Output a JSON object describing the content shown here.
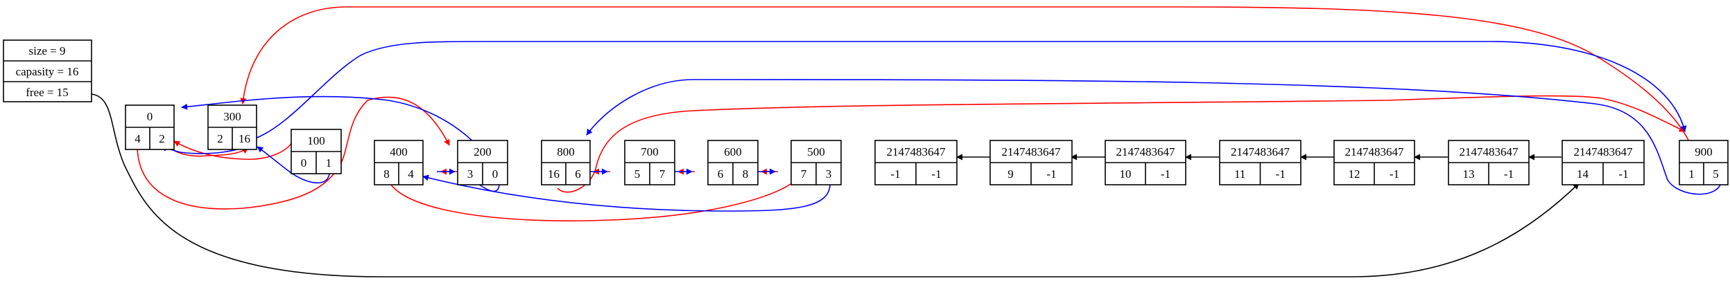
{
  "header": {
    "size": "size = 9",
    "capacity": "capasity = 16",
    "free": "free = 15"
  },
  "nodes": [
    {
      "id": "n0",
      "value": "0",
      "prev": "4",
      "next": "2"
    },
    {
      "id": "n300",
      "value": "300",
      "prev": "2",
      "next": "16"
    },
    {
      "id": "n100",
      "value": "100",
      "prev": "0",
      "next": "1"
    },
    {
      "id": "n400",
      "value": "400",
      "prev": "8",
      "next": "4"
    },
    {
      "id": "n200",
      "value": "200",
      "prev": "3",
      "next": "0"
    },
    {
      "id": "n800",
      "value": "800",
      "prev": "16",
      "next": "6"
    },
    {
      "id": "n700",
      "value": "700",
      "prev": "5",
      "next": "7"
    },
    {
      "id": "n600",
      "value": "600",
      "prev": "6",
      "next": "8"
    },
    {
      "id": "n500",
      "value": "500",
      "prev": "7",
      "next": "3"
    },
    {
      "id": "f9",
      "value": "2147483647",
      "prev": "-1",
      "next": "-1"
    },
    {
      "id": "f10",
      "value": "2147483647",
      "prev": "9",
      "next": "-1"
    },
    {
      "id": "f11",
      "value": "2147483647",
      "prev": "10",
      "next": "-1"
    },
    {
      "id": "f12",
      "value": "2147483647",
      "prev": "11",
      "next": "-1"
    },
    {
      "id": "f13",
      "value": "2147483647",
      "prev": "12",
      "next": "-1"
    },
    {
      "id": "f14",
      "value": "2147483647",
      "prev": "13",
      "next": "-1"
    },
    {
      "id": "f15",
      "value": "2147483647",
      "prev": "14",
      "next": "-1"
    },
    {
      "id": "n900",
      "value": "900",
      "prev": "1",
      "next": "5"
    }
  ],
  "colors": {
    "next_link": "#ff0000",
    "prev_link": "#0000ff",
    "free_link": "#000000"
  }
}
